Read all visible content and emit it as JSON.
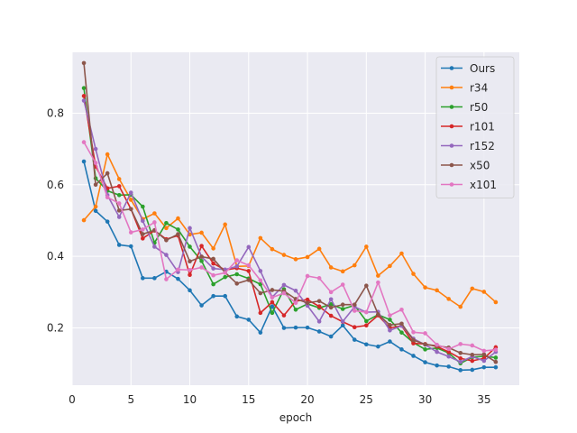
{
  "chart_data": {
    "type": "line",
    "title": "",
    "xlabel": "epoch",
    "ylabel": "",
    "xlim": [
      0,
      38
    ],
    "ylim": [
      0.04,
      0.97
    ],
    "xticks": [
      0,
      5,
      10,
      15,
      20,
      25,
      30,
      35
    ],
    "yticks": [
      0.2,
      0.4,
      0.6,
      0.8
    ],
    "ytick_labels": [
      "0.2",
      "0.4",
      "0.6",
      "0.8"
    ],
    "grid": true,
    "legend_position": "top-right",
    "x": [
      1,
      2,
      3,
      4,
      5,
      6,
      7,
      8,
      9,
      10,
      11,
      12,
      13,
      14,
      15,
      16,
      17,
      18,
      19,
      20,
      21,
      22,
      23,
      24,
      25,
      26,
      27,
      28,
      29,
      30,
      31,
      32,
      33,
      34,
      35,
      36
    ],
    "series": [
      {
        "name": "Ours",
        "color": "#1f77b4",
        "values": [
          0.665,
          0.527,
          0.497,
          0.432,
          0.428,
          0.339,
          0.339,
          0.357,
          0.337,
          0.305,
          0.263,
          0.289,
          0.289,
          0.232,
          0.223,
          0.187,
          0.26,
          0.2,
          0.201,
          0.201,
          0.19,
          0.176,
          0.207,
          0.167,
          0.154,
          0.148,
          0.162,
          0.14,
          0.122,
          0.104,
          0.095,
          0.092,
          0.082,
          0.083,
          0.09,
          0.09
        ]
      },
      {
        "name": "r34",
        "color": "#ff7f0e",
        "values": [
          0.501,
          0.539,
          0.685,
          0.616,
          0.558,
          0.504,
          0.52,
          0.479,
          0.506,
          0.461,
          0.466,
          0.422,
          0.489,
          0.372,
          0.373,
          0.451,
          0.42,
          0.404,
          0.392,
          0.398,
          0.421,
          0.369,
          0.358,
          0.375,
          0.427,
          0.346,
          0.373,
          0.408,
          0.351,
          0.313,
          0.305,
          0.281,
          0.259,
          0.31,
          0.301,
          0.272
        ]
      },
      {
        "name": "r50",
        "color": "#2ca02c",
        "values": [
          0.87,
          0.618,
          0.583,
          0.571,
          0.572,
          0.539,
          0.438,
          0.493,
          0.475,
          0.427,
          0.387,
          0.322,
          0.342,
          0.35,
          0.338,
          0.322,
          0.242,
          0.308,
          0.251,
          0.267,
          0.256,
          0.266,
          0.253,
          0.263,
          0.219,
          0.237,
          0.223,
          0.187,
          0.159,
          0.14,
          0.144,
          0.13,
          0.101,
          0.118,
          0.121,
          0.117
        ]
      },
      {
        "name": "r101",
        "color": "#d62728",
        "values": [
          0.848,
          0.651,
          0.59,
          0.596,
          0.532,
          0.45,
          0.472,
          0.448,
          0.458,
          0.348,
          0.429,
          0.38,
          0.362,
          0.367,
          0.359,
          0.242,
          0.272,
          0.235,
          0.275,
          0.279,
          0.26,
          0.234,
          0.217,
          0.202,
          0.207,
          0.235,
          0.2,
          0.206,
          0.157,
          0.155,
          0.148,
          0.133,
          0.115,
          0.108,
          0.115,
          0.146
        ]
      },
      {
        "name": "r152",
        "color": "#9467bd",
        "values": [
          0.835,
          0.7,
          0.571,
          0.51,
          0.578,
          0.499,
          0.427,
          0.404,
          0.356,
          0.479,
          0.399,
          0.366,
          0.363,
          0.372,
          0.426,
          0.359,
          0.286,
          0.32,
          0.304,
          0.262,
          0.218,
          0.28,
          0.218,
          0.259,
          0.244,
          0.245,
          0.193,
          0.206,
          0.17,
          0.153,
          0.133,
          0.12,
          0.105,
          0.12,
          0.108,
          0.133
        ]
      },
      {
        "name": "x50",
        "color": "#8c564b",
        "values": [
          0.94,
          0.6,
          0.632,
          0.528,
          0.532,
          0.462,
          0.473,
          0.445,
          0.462,
          0.386,
          0.399,
          0.393,
          0.355,
          0.324,
          0.334,
          0.297,
          0.306,
          0.303,
          0.281,
          0.27,
          0.275,
          0.257,
          0.265,
          0.265,
          0.318,
          0.238,
          0.208,
          0.212,
          0.166,
          0.154,
          0.15,
          0.145,
          0.13,
          0.125,
          0.126,
          0.105
        ]
      },
      {
        "name": "x101",
        "color": "#e377c2",
        "values": [
          0.719,
          0.661,
          0.565,
          0.548,
          0.467,
          0.475,
          0.495,
          0.336,
          0.363,
          0.362,
          0.369,
          0.347,
          0.354,
          0.389,
          0.375,
          0.333,
          0.285,
          0.297,
          0.27,
          0.345,
          0.339,
          0.3,
          0.321,
          0.248,
          0.244,
          0.327,
          0.235,
          0.251,
          0.188,
          0.185,
          0.153,
          0.141,
          0.155,
          0.151,
          0.136,
          0.139
        ]
      }
    ]
  }
}
